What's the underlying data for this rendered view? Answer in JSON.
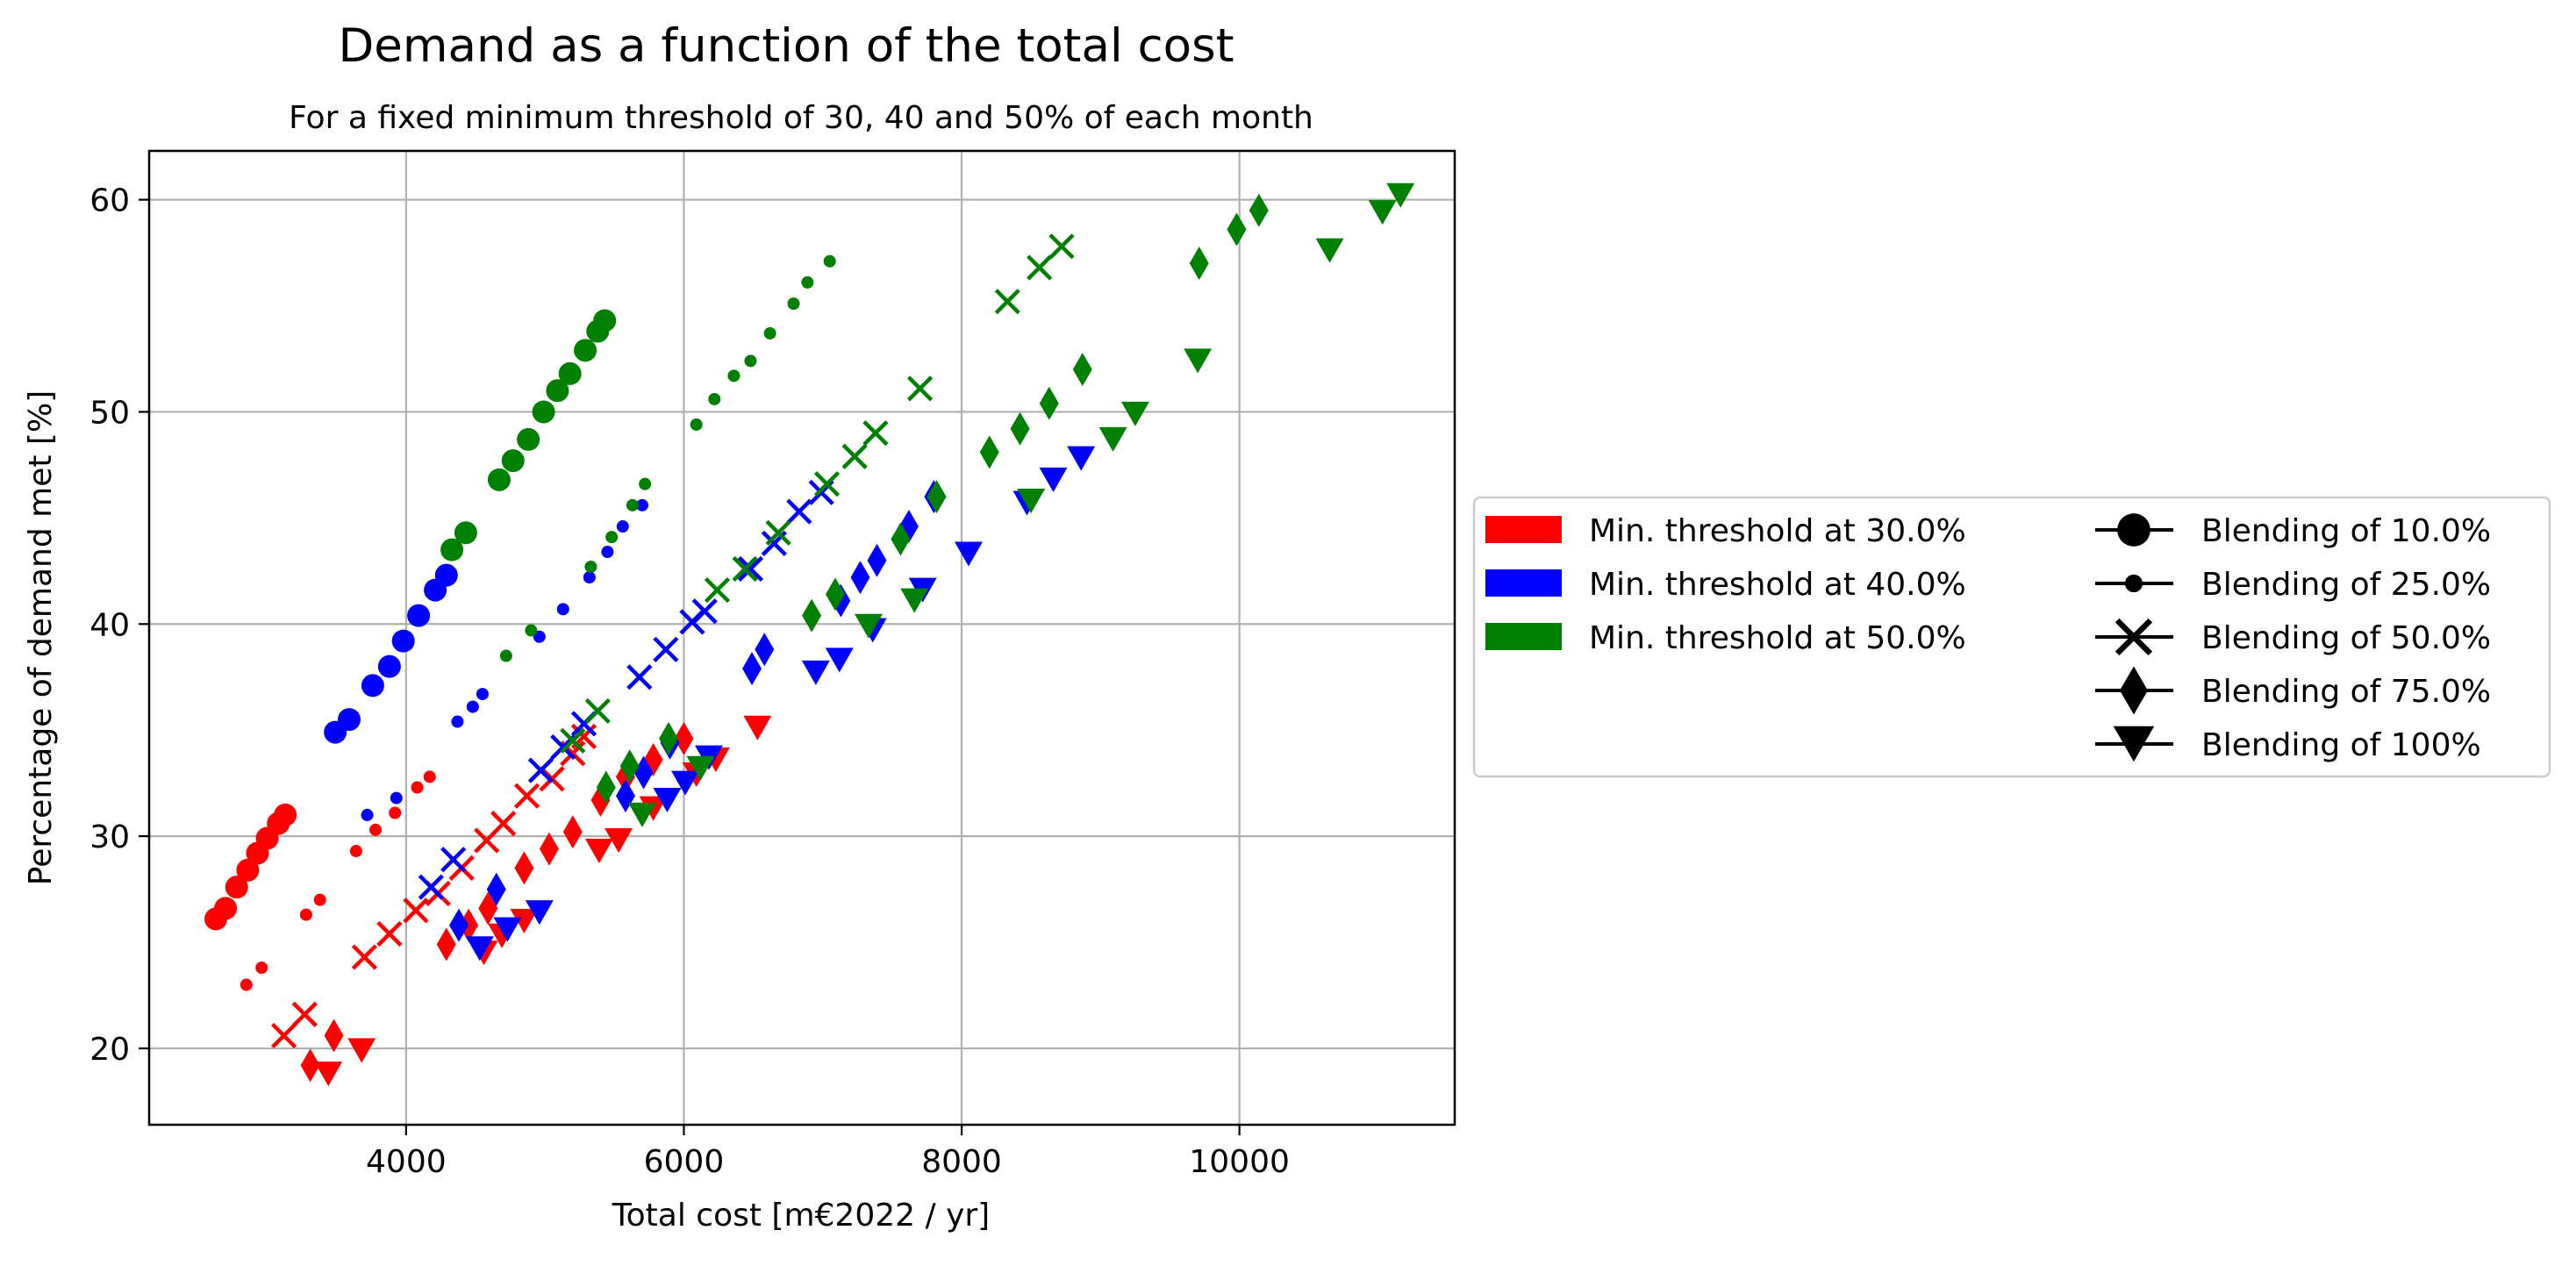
{
  "chart_data": {
    "type": "scatter",
    "title": "Demand as a function of the total cost",
    "subtitle": "For a fixed minimum threshold of 30, 40 and 50% of each month",
    "xlabel": "Total cost [m€2022 / yr]",
    "ylabel": "Percentage of demand met [%]",
    "xlim": [
      2150,
      11550
    ],
    "ylim": [
      16.4,
      62.3
    ],
    "xticks": [
      4000,
      6000,
      8000,
      10000
    ],
    "xtick_labels": [
      "4000",
      "6000",
      "8000",
      "10000"
    ],
    "yticks": [
      20,
      30,
      40,
      50,
      60
    ],
    "ytick_labels": [
      "20",
      "30",
      "40",
      "50",
      "60"
    ],
    "grid": true,
    "legend_placement": "right",
    "threshold_legend": [
      {
        "label": "Min. threshold at 30.0%",
        "color": "#ff0000"
      },
      {
        "label": "Min. threshold at 40.0%",
        "color": "#0000ff"
      },
      {
        "label": "Min. threshold at 50.0%",
        "color": "#008000"
      }
    ],
    "blending_legend": [
      {
        "label": "Blending of 10.0%",
        "marker": "circle-large"
      },
      {
        "label": "Blending of 25.0%",
        "marker": "circle-small"
      },
      {
        "label": "Blending of 50.0%",
        "marker": "x"
      },
      {
        "label": "Blending of 75.0%",
        "marker": "diamond"
      },
      {
        "label": "Blending of 100%",
        "marker": "triangle-down"
      }
    ],
    "series": [
      {
        "threshold": "30.0%",
        "blending": "10.0%",
        "color": "#ff0000",
        "marker": "circle-large",
        "points": [
          [
            2630,
            26.1
          ],
          [
            2700,
            26.6
          ],
          [
            2780,
            27.6
          ],
          [
            2860,
            28.4
          ],
          [
            2930,
            29.2
          ],
          [
            3000,
            29.9
          ],
          [
            3080,
            30.6
          ],
          [
            3130,
            31.0
          ]
        ]
      },
      {
        "threshold": "30.0%",
        "blending": "25.0%",
        "color": "#ff0000",
        "marker": "circle-small",
        "points": [
          [
            2850,
            23.0
          ],
          [
            2960,
            23.8
          ],
          [
            3280,
            26.3
          ],
          [
            3380,
            27.0
          ],
          [
            3640,
            29.3
          ],
          [
            3780,
            30.3
          ],
          [
            3920,
            31.1
          ],
          [
            4080,
            32.3
          ],
          [
            4170,
            32.8
          ]
        ]
      },
      {
        "threshold": "30.0%",
        "blending": "50.0%",
        "color": "#ff0000",
        "marker": "x",
        "points": [
          [
            3120,
            20.6
          ],
          [
            3270,
            21.6
          ],
          [
            3700,
            24.3
          ],
          [
            3880,
            25.4
          ],
          [
            4070,
            26.5
          ],
          [
            4230,
            27.3
          ],
          [
            4400,
            28.5
          ],
          [
            4580,
            29.8
          ],
          [
            4700,
            30.6
          ],
          [
            4870,
            31.9
          ],
          [
            5050,
            32.7
          ],
          [
            5200,
            33.9
          ],
          [
            5280,
            34.7
          ]
        ]
      },
      {
        "threshold": "30.0%",
        "blending": "75.0%",
        "color": "#ff0000",
        "marker": "diamond",
        "points": [
          [
            3310,
            19.2
          ],
          [
            3480,
            20.6
          ],
          [
            4290,
            24.9
          ],
          [
            4450,
            25.8
          ],
          [
            4590,
            26.6
          ],
          [
            4850,
            28.5
          ],
          [
            5030,
            29.4
          ],
          [
            5200,
            30.2
          ],
          [
            5400,
            31.7
          ],
          [
            5580,
            32.8
          ],
          [
            5780,
            33.6
          ],
          [
            6000,
            34.6
          ]
        ]
      },
      {
        "threshold": "30.0%",
        "blending": "100%",
        "color": "#ff0000",
        "marker": "triangle-down",
        "points": [
          [
            3440,
            18.8
          ],
          [
            3680,
            19.9
          ],
          [
            4560,
            24.5
          ],
          [
            4690,
            25.3
          ],
          [
            4850,
            26.0
          ],
          [
            5390,
            29.3
          ],
          [
            5530,
            29.8
          ],
          [
            5780,
            31.3
          ],
          [
            6090,
            32.9
          ],
          [
            6230,
            33.6
          ],
          [
            6530,
            35.1
          ]
        ]
      },
      {
        "threshold": "40.0%",
        "blending": "10.0%",
        "color": "#0000ff",
        "marker": "circle-large",
        "points": [
          [
            3490,
            34.9
          ],
          [
            3590,
            35.5
          ],
          [
            3760,
            37.1
          ],
          [
            3880,
            38.0
          ],
          [
            3980,
            39.2
          ],
          [
            4090,
            40.4
          ],
          [
            4210,
            41.6
          ],
          [
            4290,
            42.3
          ]
        ]
      },
      {
        "threshold": "40.0%",
        "blending": "25.0%",
        "color": "#0000ff",
        "marker": "circle-small",
        "points": [
          [
            3720,
            31.0
          ],
          [
            3930,
            31.8
          ],
          [
            4370,
            35.4
          ],
          [
            4480,
            36.1
          ],
          [
            4550,
            36.7
          ],
          [
            4960,
            39.4
          ],
          [
            5130,
            40.7
          ],
          [
            5320,
            42.2
          ],
          [
            5450,
            43.4
          ],
          [
            5560,
            44.6
          ],
          [
            5700,
            45.6
          ]
        ]
      },
      {
        "threshold": "40.0%",
        "blending": "50.0%",
        "color": "#0000ff",
        "marker": "x",
        "points": [
          [
            4180,
            27.6
          ],
          [
            4340,
            28.9
          ],
          [
            4970,
            33.1
          ],
          [
            5130,
            34.2
          ],
          [
            5280,
            35.3
          ],
          [
            5680,
            37.5
          ],
          [
            5870,
            38.8
          ],
          [
            6060,
            40.1
          ],
          [
            6150,
            40.6
          ],
          [
            6480,
            42.6
          ],
          [
            6650,
            43.8
          ],
          [
            6830,
            45.3
          ],
          [
            6990,
            46.2
          ]
        ]
      },
      {
        "threshold": "40.0%",
        "blending": "75.0%",
        "color": "#0000ff",
        "marker": "diamond",
        "points": [
          [
            4380,
            25.8
          ],
          [
            4650,
            27.5
          ],
          [
            5580,
            31.9
          ],
          [
            5710,
            33.0
          ],
          [
            5900,
            34.4
          ],
          [
            6490,
            37.9
          ],
          [
            6580,
            38.8
          ],
          [
            7130,
            41.1
          ],
          [
            7270,
            42.2
          ],
          [
            7390,
            43.0
          ],
          [
            7620,
            44.6
          ],
          [
            7800,
            46.0
          ]
        ]
      },
      {
        "threshold": "40.0%",
        "blending": "100%",
        "color": "#0000ff",
        "marker": "triangle-down",
        "points": [
          [
            4530,
            24.7
          ],
          [
            4730,
            25.6
          ],
          [
            4960,
            26.4
          ],
          [
            5880,
            31.7
          ],
          [
            6010,
            32.5
          ],
          [
            6180,
            33.7
          ],
          [
            6950,
            37.7
          ],
          [
            7120,
            38.3
          ],
          [
            7360,
            39.7
          ],
          [
            7720,
            41.6
          ],
          [
            8050,
            43.3
          ],
          [
            8470,
            45.7
          ],
          [
            8660,
            46.8
          ],
          [
            8860,
            47.8
          ]
        ]
      },
      {
        "threshold": "50.0%",
        "blending": "10.0%",
        "color": "#008000",
        "marker": "circle-large",
        "points": [
          [
            4330,
            43.5
          ],
          [
            4430,
            44.3
          ],
          [
            4670,
            46.8
          ],
          [
            4770,
            47.7
          ],
          [
            4880,
            48.7
          ],
          [
            4990,
            50.0
          ],
          [
            5090,
            51.0
          ],
          [
            5180,
            51.8
          ],
          [
            5290,
            52.9
          ],
          [
            5380,
            53.8
          ],
          [
            5430,
            54.3
          ]
        ]
      },
      {
        "threshold": "50.0%",
        "blending": "25.0%",
        "color": "#008000",
        "marker": "circle-small",
        "points": [
          [
            4720,
            38.5
          ],
          [
            4900,
            39.7
          ],
          [
            5330,
            42.7
          ],
          [
            5480,
            44.1
          ],
          [
            5630,
            45.6
          ],
          [
            5720,
            46.6
          ],
          [
            6090,
            49.4
          ],
          [
            6220,
            50.6
          ],
          [
            6360,
            51.7
          ],
          [
            6480,
            52.4
          ],
          [
            6620,
            53.7
          ],
          [
            6790,
            55.1
          ],
          [
            6890,
            56.1
          ],
          [
            7050,
            57.1
          ]
        ]
      },
      {
        "threshold": "50.0%",
        "blending": "50.0%",
        "color": "#008000",
        "marker": "x",
        "points": [
          [
            5200,
            34.5
          ],
          [
            5380,
            35.9
          ],
          [
            6240,
            41.6
          ],
          [
            6440,
            42.6
          ],
          [
            6680,
            44.3
          ],
          [
            7030,
            46.6
          ],
          [
            7230,
            47.9
          ],
          [
            7380,
            49.0
          ],
          [
            7700,
            51.1
          ],
          [
            8330,
            55.2
          ],
          [
            8560,
            56.8
          ],
          [
            8720,
            57.8
          ]
        ]
      },
      {
        "threshold": "50.0%",
        "blending": "75.0%",
        "color": "#008000",
        "marker": "diamond",
        "points": [
          [
            5440,
            32.3
          ],
          [
            5610,
            33.3
          ],
          [
            5890,
            34.6
          ],
          [
            6920,
            40.4
          ],
          [
            7090,
            41.4
          ],
          [
            7560,
            44.0
          ],
          [
            7820,
            46.0
          ],
          [
            8200,
            48.1
          ],
          [
            8420,
            49.2
          ],
          [
            8630,
            50.4
          ],
          [
            8870,
            52.0
          ],
          [
            9710,
            57.0
          ],
          [
            9980,
            58.6
          ],
          [
            10140,
            59.5
          ]
        ]
      },
      {
        "threshold": "50.0%",
        "blending": "100%",
        "color": "#008000",
        "marker": "triangle-down",
        "points": [
          [
            5700,
            31.0
          ],
          [
            6120,
            33.2
          ],
          [
            7330,
            39.9
          ],
          [
            7660,
            41.1
          ],
          [
            8500,
            45.8
          ],
          [
            9090,
            48.7
          ],
          [
            9250,
            49.9
          ],
          [
            9700,
            52.4
          ],
          [
            10650,
            57.6
          ],
          [
            11030,
            59.4
          ],
          [
            11160,
            60.2
          ]
        ]
      }
    ]
  }
}
